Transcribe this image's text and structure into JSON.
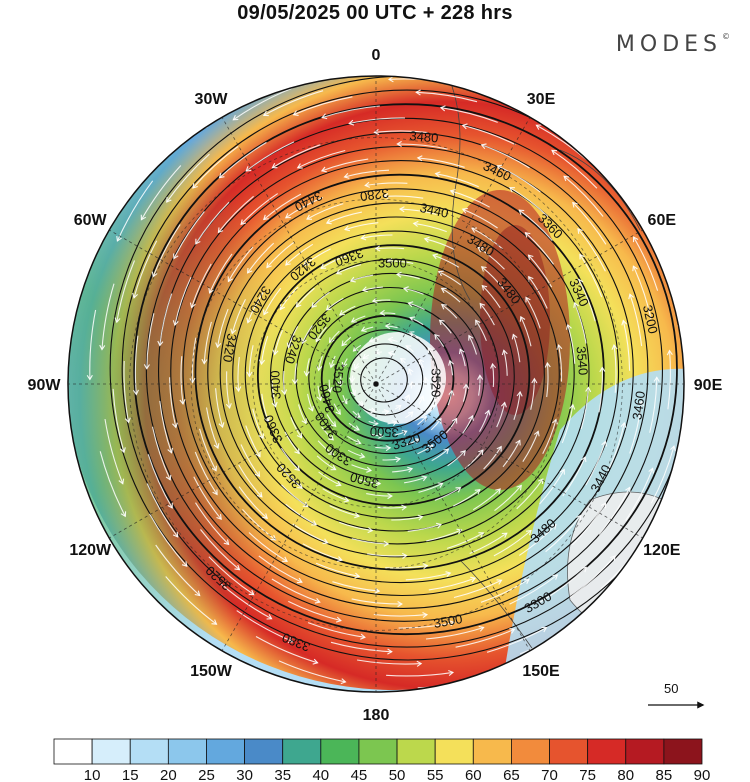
{
  "title": "09/05/2025  00 UTC  + 228 hrs",
  "brand": "MODES",
  "brand_mark": "©",
  "longitude_labels": [
    {
      "text": "0",
      "lon": 0
    },
    {
      "text": "30E",
      "lon": 30
    },
    {
      "text": "60E",
      "lon": 60
    },
    {
      "text": "90E",
      "lon": 90
    },
    {
      "text": "120E",
      "lon": 120
    },
    {
      "text": "150E",
      "lon": 150
    },
    {
      "text": "180",
      "lon": 180
    },
    {
      "text": "150W",
      "lon": -150
    },
    {
      "text": "120W",
      "lon": -120
    },
    {
      "text": "90W",
      "lon": -90
    },
    {
      "text": "60W",
      "lon": -60
    },
    {
      "text": "30W",
      "lon": -30
    }
  ],
  "contour_labels": [
    "3520",
    "3520",
    "3480",
    "3500",
    "3420",
    "3340",
    "3500",
    "3440",
    "3400",
    "3360",
    "3460",
    "3320",
    "3240",
    "3200",
    "3300",
    "3280",
    "3320",
    "3400",
    "3360",
    "3500",
    "3420",
    "3460",
    "3400",
    "3440",
    "3300",
    "3240",
    "3340",
    "3380",
    "3360",
    "3440",
    "3460",
    "3480",
    "3500",
    "3520",
    "3540",
    "3520",
    "3500",
    "3480",
    "3520",
    "3480"
  ],
  "reference_vector": {
    "label": "50"
  },
  "colorbar": {
    "ticks": [
      "10",
      "15",
      "20",
      "25",
      "30",
      "35",
      "40",
      "45",
      "50",
      "55",
      "60",
      "65",
      "70",
      "75",
      "80",
      "85",
      "90"
    ],
    "colors": [
      "#ffffff",
      "#d6eefb",
      "#b4def5",
      "#8cc7ec",
      "#63a8de",
      "#4a8ac8",
      "#3ea78f",
      "#4bb658",
      "#7cc650",
      "#bcd84c",
      "#f4e05a",
      "#f7b94c",
      "#f28b3c",
      "#e6542e",
      "#d62a26",
      "#b51a22",
      "#8c141c"
    ]
  },
  "map": {
    "center_height": "3200",
    "wind_color_scale": "knots"
  }
}
